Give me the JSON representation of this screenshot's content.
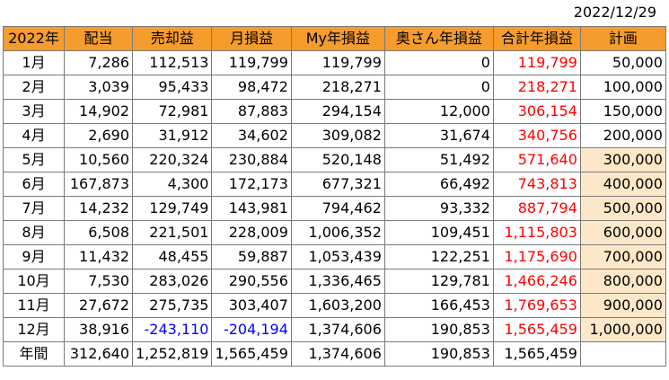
{
  "date": "2022/12/29",
  "colors": {
    "header_bg": "#f59c2c",
    "plan_highlight_bg": "#fce8c8",
    "total_text": "#ff0000",
    "negative_text": "#0000ff"
  },
  "headers": [
    "2022年",
    "配当",
    "売却益",
    "月損益",
    "My年損益",
    "奥さん年損益",
    "合計年損益",
    "計画"
  ],
  "rows": [
    {
      "month": "1月",
      "dividend": "7,286",
      "sale": "112,513",
      "monthly": "119,799",
      "my_year": "119,799",
      "wife_year": "0",
      "total_year": "119,799",
      "plan": "50,000",
      "plan_hl": false
    },
    {
      "month": "2月",
      "dividend": "3,039",
      "sale": "95,433",
      "monthly": "98,472",
      "my_year": "218,271",
      "wife_year": "0",
      "total_year": "218,271",
      "plan": "100,000",
      "plan_hl": false
    },
    {
      "month": "3月",
      "dividend": "14,902",
      "sale": "72,981",
      "monthly": "87,883",
      "my_year": "294,154",
      "wife_year": "12,000",
      "total_year": "306,154",
      "plan": "150,000",
      "plan_hl": false
    },
    {
      "month": "4月",
      "dividend": "2,690",
      "sale": "31,912",
      "monthly": "34,602",
      "my_year": "309,082",
      "wife_year": "31,674",
      "total_year": "340,756",
      "plan": "200,000",
      "plan_hl": false
    },
    {
      "month": "5月",
      "dividend": "10,560",
      "sale": "220,324",
      "monthly": "230,884",
      "my_year": "520,148",
      "wife_year": "51,492",
      "total_year": "571,640",
      "plan": "300,000",
      "plan_hl": true
    },
    {
      "month": "6月",
      "dividend": "167,873",
      "sale": "4,300",
      "monthly": "172,173",
      "my_year": "677,321",
      "wife_year": "66,492",
      "total_year": "743,813",
      "plan": "400,000",
      "plan_hl": true
    },
    {
      "month": "7月",
      "dividend": "14,232",
      "sale": "129,749",
      "monthly": "143,981",
      "my_year": "794,462",
      "wife_year": "93,332",
      "total_year": "887,794",
      "plan": "500,000",
      "plan_hl": true
    },
    {
      "month": "8月",
      "dividend": "6,508",
      "sale": "221,501",
      "monthly": "228,009",
      "my_year": "1,006,352",
      "wife_year": "109,451",
      "total_year": "1,115,803",
      "plan": "600,000",
      "plan_hl": true
    },
    {
      "month": "9月",
      "dividend": "11,432",
      "sale": "48,455",
      "monthly": "59,887",
      "my_year": "1,053,439",
      "wife_year": "122,251",
      "total_year": "1,175,690",
      "plan": "700,000",
      "plan_hl": true
    },
    {
      "month": "10月",
      "dividend": "7,530",
      "sale": "283,026",
      "monthly": "290,556",
      "my_year": "1,336,465",
      "wife_year": "129,781",
      "total_year": "1,466,246",
      "plan": "800,000",
      "plan_hl": true
    },
    {
      "month": "11月",
      "dividend": "27,672",
      "sale": "275,735",
      "monthly": "303,407",
      "my_year": "1,603,200",
      "wife_year": "166,453",
      "total_year": "1,769,653",
      "plan": "900,000",
      "plan_hl": true
    },
    {
      "month": "12月",
      "dividend": "38,916",
      "sale": "-243,110",
      "monthly": "-204,194",
      "my_year": "1,374,606",
      "wife_year": "190,853",
      "total_year": "1,565,459",
      "plan": "1,000,000",
      "plan_hl": true
    }
  ],
  "total": {
    "label": "年間",
    "dividend": "312,640",
    "sale": "1,252,819",
    "monthly": "1,565,459",
    "my_year": "1,374,606",
    "wife_year": "190,853",
    "total_year": "1,565,459",
    "plan": ""
  }
}
